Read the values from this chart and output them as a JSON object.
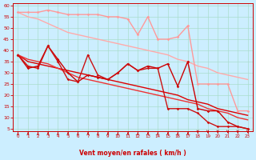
{
  "background_color": "#cceeff",
  "grid_color": "#aaddcc",
  "xlabel": "Vent moyen/en rafales ( km/h )",
  "xlabel_color": "#cc0000",
  "tick_color": "#cc0000",
  "arrow_color": "#cc0000",
  "xlim": [
    -0.5,
    23.5
  ],
  "ylim": [
    4,
    61
  ],
  "yticks": [
    5,
    10,
    15,
    20,
    25,
    30,
    35,
    40,
    45,
    50,
    55,
    60
  ],
  "xticks": [
    0,
    1,
    2,
    3,
    4,
    5,
    6,
    7,
    8,
    9,
    10,
    11,
    12,
    13,
    14,
    15,
    16,
    17,
    18,
    19,
    20,
    21,
    22,
    23
  ],
  "lines": [
    {
      "x": [
        0,
        1,
        2,
        3,
        4,
        5,
        6,
        7,
        8,
        9,
        10,
        11,
        12,
        13,
        14,
        15,
        16,
        17,
        18,
        19,
        20,
        21,
        22,
        23
      ],
      "y": [
        57,
        57,
        57,
        58,
        57,
        56,
        56,
        56,
        56,
        55,
        55,
        54,
        47,
        55,
        45,
        45,
        46,
        51,
        25,
        25,
        25,
        25,
        13,
        13
      ],
      "color": "#ff9999",
      "lw": 1.0,
      "marker": true
    },
    {
      "x": [
        0,
        1,
        2,
        3,
        4,
        5,
        6,
        7,
        8,
        9,
        10,
        11,
        12,
        13,
        14,
        15,
        16,
        17,
        18,
        19,
        20,
        21,
        22,
        23
      ],
      "y": [
        57,
        55,
        54,
        52,
        50,
        48,
        47,
        46,
        45,
        44,
        43,
        42,
        41,
        40,
        39,
        38,
        36,
        35,
        33,
        32,
        30,
        29,
        28,
        27
      ],
      "color": "#ffaaaa",
      "lw": 1.0,
      "marker": false
    },
    {
      "x": [
        0,
        1,
        2,
        3,
        4,
        5,
        6,
        7,
        8,
        9,
        10,
        11,
        12,
        13,
        14,
        15,
        16,
        17,
        18,
        19,
        20,
        21,
        22,
        23
      ],
      "y": [
        38,
        32,
        33,
        42,
        36,
        30,
        26,
        29,
        28,
        27,
        30,
        34,
        31,
        33,
        32,
        34,
        24,
        35,
        14,
        13,
        13,
        8,
        6,
        5
      ],
      "color": "#cc0000",
      "lw": 1.0,
      "marker": true
    },
    {
      "x": [
        0,
        1,
        2,
        3,
        4,
        5,
        6,
        7,
        8,
        9,
        10,
        11,
        12,
        13,
        14,
        15,
        16,
        17,
        18,
        19,
        20,
        21,
        22,
        23
      ],
      "y": [
        38,
        35,
        34,
        33,
        32,
        31,
        30,
        29,
        28,
        27,
        26,
        25,
        24,
        23,
        22,
        21,
        20,
        18,
        17,
        16,
        14,
        13,
        12,
        11
      ],
      "color": "#dd0000",
      "lw": 1.0,
      "marker": false
    },
    {
      "x": [
        0,
        1,
        2,
        3,
        4,
        5,
        6,
        7,
        8,
        9,
        10,
        11,
        12,
        13,
        14,
        15,
        16,
        17,
        18,
        19,
        20,
        21,
        22,
        23
      ],
      "y": [
        38,
        36,
        35,
        34,
        32,
        30,
        28,
        27,
        26,
        25,
        24,
        23,
        22,
        21,
        20,
        19,
        18,
        17,
        16,
        14,
        13,
        12,
        10,
        9
      ],
      "color": "#ee3333",
      "lw": 1.0,
      "marker": false
    },
    {
      "x": [
        0,
        1,
        2,
        3,
        4,
        5,
        6,
        7,
        8,
        9,
        10,
        11,
        12,
        13,
        14,
        15,
        16,
        17,
        18,
        19,
        20,
        21,
        22,
        23
      ],
      "y": [
        38,
        33,
        32,
        42,
        35,
        27,
        26,
        38,
        29,
        27,
        30,
        34,
        31,
        32,
        32,
        14,
        14,
        14,
        12,
        8,
        6,
        6,
        6,
        5
      ],
      "color": "#cc1111",
      "lw": 1.0,
      "marker": true
    }
  ],
  "arrows_up_x": [
    0,
    1,
    2,
    3,
    4,
    5,
    6,
    7,
    8,
    9,
    10,
    11,
    12,
    13,
    14,
    15,
    16,
    17
  ],
  "arrows_down_x": [
    18,
    19,
    20,
    21,
    22,
    23
  ]
}
